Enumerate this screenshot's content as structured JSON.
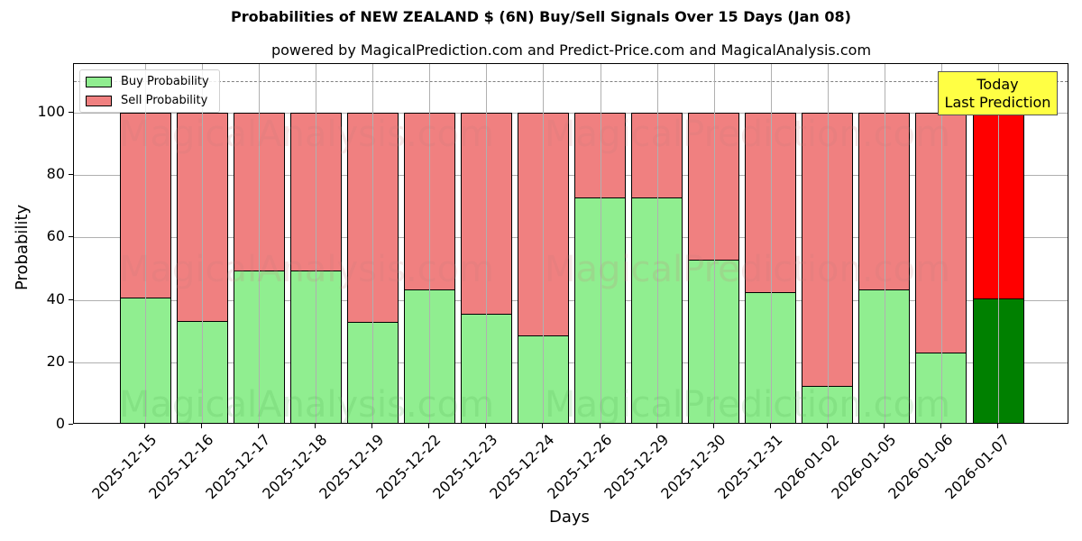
{
  "header": {
    "title": "Probabilities of NEW ZEALAND $ (6N) Buy/Sell Signals Over 15 Days (Jan 08)",
    "subtitle": "powered by MagicalPrediction.com and Predict-Price.com and MagicalAnalysis.com"
  },
  "legend": {
    "buy_label": "Buy Probability",
    "sell_label": "Sell Probability"
  },
  "annotation": {
    "line1": "Today",
    "line2": "Last Prediction"
  },
  "watermarks": [
    "MagicalAnalysis.com",
    "MagicalPrediction.com"
  ],
  "axes": {
    "xlabel": "Days",
    "ylabel": "Probability",
    "yticks": [
      "0",
      "20",
      "40",
      "60",
      "80",
      "100"
    ]
  },
  "colors": {
    "buy": "#90ee90",
    "sell": "#f08080",
    "today_buy": "#008000",
    "today_sell": "#ff0000",
    "annotation_bg": "#ffff44"
  },
  "chart_data": {
    "type": "bar",
    "stacked": true,
    "title": "Probabilities of NEW ZEALAND $ (6N) Buy/Sell Signals Over 15 Days (Jan 08)",
    "subtitle": "powered by MagicalPrediction.com and Predict-Price.com and MagicalAnalysis.com",
    "xlabel": "Days",
    "ylabel": "Probability",
    "ylim": [
      0,
      115
    ],
    "yticks": [
      0,
      20,
      40,
      60,
      80,
      100
    ],
    "grid": true,
    "legend_position": "upper left",
    "reference_line": {
      "y": 110,
      "style": "dashed",
      "color": "#808080"
    },
    "categories": [
      "2025-12-15",
      "2025-12-16",
      "2025-12-17",
      "2025-12-18",
      "2025-12-19",
      "2025-12-22",
      "2025-12-23",
      "2025-12-24",
      "2025-12-26",
      "2025-12-29",
      "2025-12-30",
      "2025-12-31",
      "2026-01-02",
      "2026-01-05",
      "2026-01-06",
      "2026-01-07"
    ],
    "series": [
      {
        "name": "Buy Probability",
        "color": "#90ee90",
        "values": [
          40.8,
          33.2,
          49.4,
          49.4,
          32.9,
          43.4,
          35.5,
          28.6,
          72.8,
          72.8,
          52.9,
          42.5,
          12.4,
          43.4,
          23.1,
          40.5
        ]
      },
      {
        "name": "Sell Probability",
        "color": "#f08080",
        "values": [
          59.2,
          66.8,
          50.6,
          50.6,
          67.1,
          56.6,
          64.5,
          71.4,
          27.2,
          27.2,
          47.1,
          57.5,
          87.6,
          56.6,
          76.9,
          59.5
        ]
      }
    ],
    "annotations": [
      {
        "text": "Today\nLast Prediction",
        "category": "2026-01-07",
        "bg": "#ffff44"
      }
    ],
    "highlight": {
      "category": "2026-01-07",
      "buy_color": "#008000",
      "sell_color": "#ff0000"
    }
  }
}
